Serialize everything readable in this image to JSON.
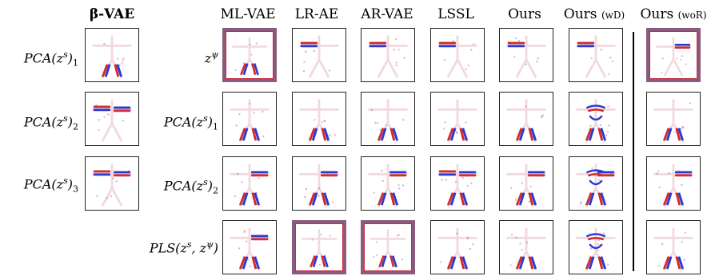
{
  "columns": {
    "beta_vae": "β-VAE",
    "ml_vae": "ML-VAE",
    "lr_ae": "LR-AE",
    "ar_vae": "AR-VAE",
    "lssl": "LSSL",
    "ours": "Ours",
    "ours_wd": {
      "main": "Ours",
      "sub": "(wD)"
    },
    "ours_wor": {
      "main": "Ours",
      "sub": "(woR)"
    }
  },
  "left_rows": [
    {
      "base": "PCA(z",
      "sup": "s",
      "tail": ")",
      "sub": "1"
    },
    {
      "base": "PCA(z",
      "sup": "s",
      "tail": ")",
      "sub": "2"
    },
    {
      "base": "PCA(z",
      "sup": "s",
      "tail": ")",
      "sub": "3"
    }
  ],
  "right_rows": [
    {
      "base": "z",
      "sup": "ψ",
      "tail": "",
      "sub": ""
    },
    {
      "base": "PCA(z",
      "sup": "s",
      "tail": ")",
      "sub": "1"
    },
    {
      "base": "PCA(z",
      "sup": "s",
      "tail": ")",
      "sub": "2"
    },
    {
      "base": "PLS(z",
      "sup": "s",
      "tail": ", z",
      "sup2": "ψ",
      "tail2": ")",
      "sub": ""
    }
  ],
  "colors": {
    "positive": "#d42a2a",
    "negative": "#2a3ad4",
    "highlight_border": "#8b5a7c"
  },
  "highlighted_tiles": [
    "ml_vae-zpsi",
    "ours_wor-zpsi",
    "lr_ae-pls",
    "ar_vae-pls"
  ]
}
